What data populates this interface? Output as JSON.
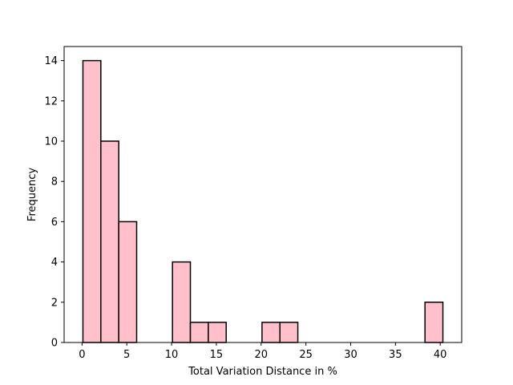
{
  "chart_data": {
    "type": "bar",
    "subtype": "histogram",
    "title": "",
    "xlabel": "Total Variation Distance in %",
    "ylabel": "Frequency",
    "xlim": [
      -2.0,
      42.4
    ],
    "ylim": [
      0,
      14.7
    ],
    "xticks": [
      0,
      5,
      10,
      15,
      20,
      25,
      30,
      35,
      40
    ],
    "yticks": [
      0,
      2,
      4,
      6,
      8,
      10,
      12,
      14
    ],
    "bin_edges": [
      0.1,
      2.1,
      4.1,
      6.1,
      8.1,
      10.1,
      12.1,
      14.1,
      16.1,
      18.1,
      20.1,
      22.1,
      24.1,
      26.1,
      28.1,
      30.1,
      32.1,
      34.1,
      36.1,
      38.3,
      40.3
    ],
    "counts": [
      14,
      10,
      6,
      0,
      0,
      4,
      1,
      1,
      0,
      0,
      1,
      1,
      0,
      0,
      0,
      0,
      0,
      0,
      0,
      2
    ],
    "bar_color": "#ffc0cb",
    "edge_color": "#000000",
    "grid": false,
    "legend": "none"
  }
}
